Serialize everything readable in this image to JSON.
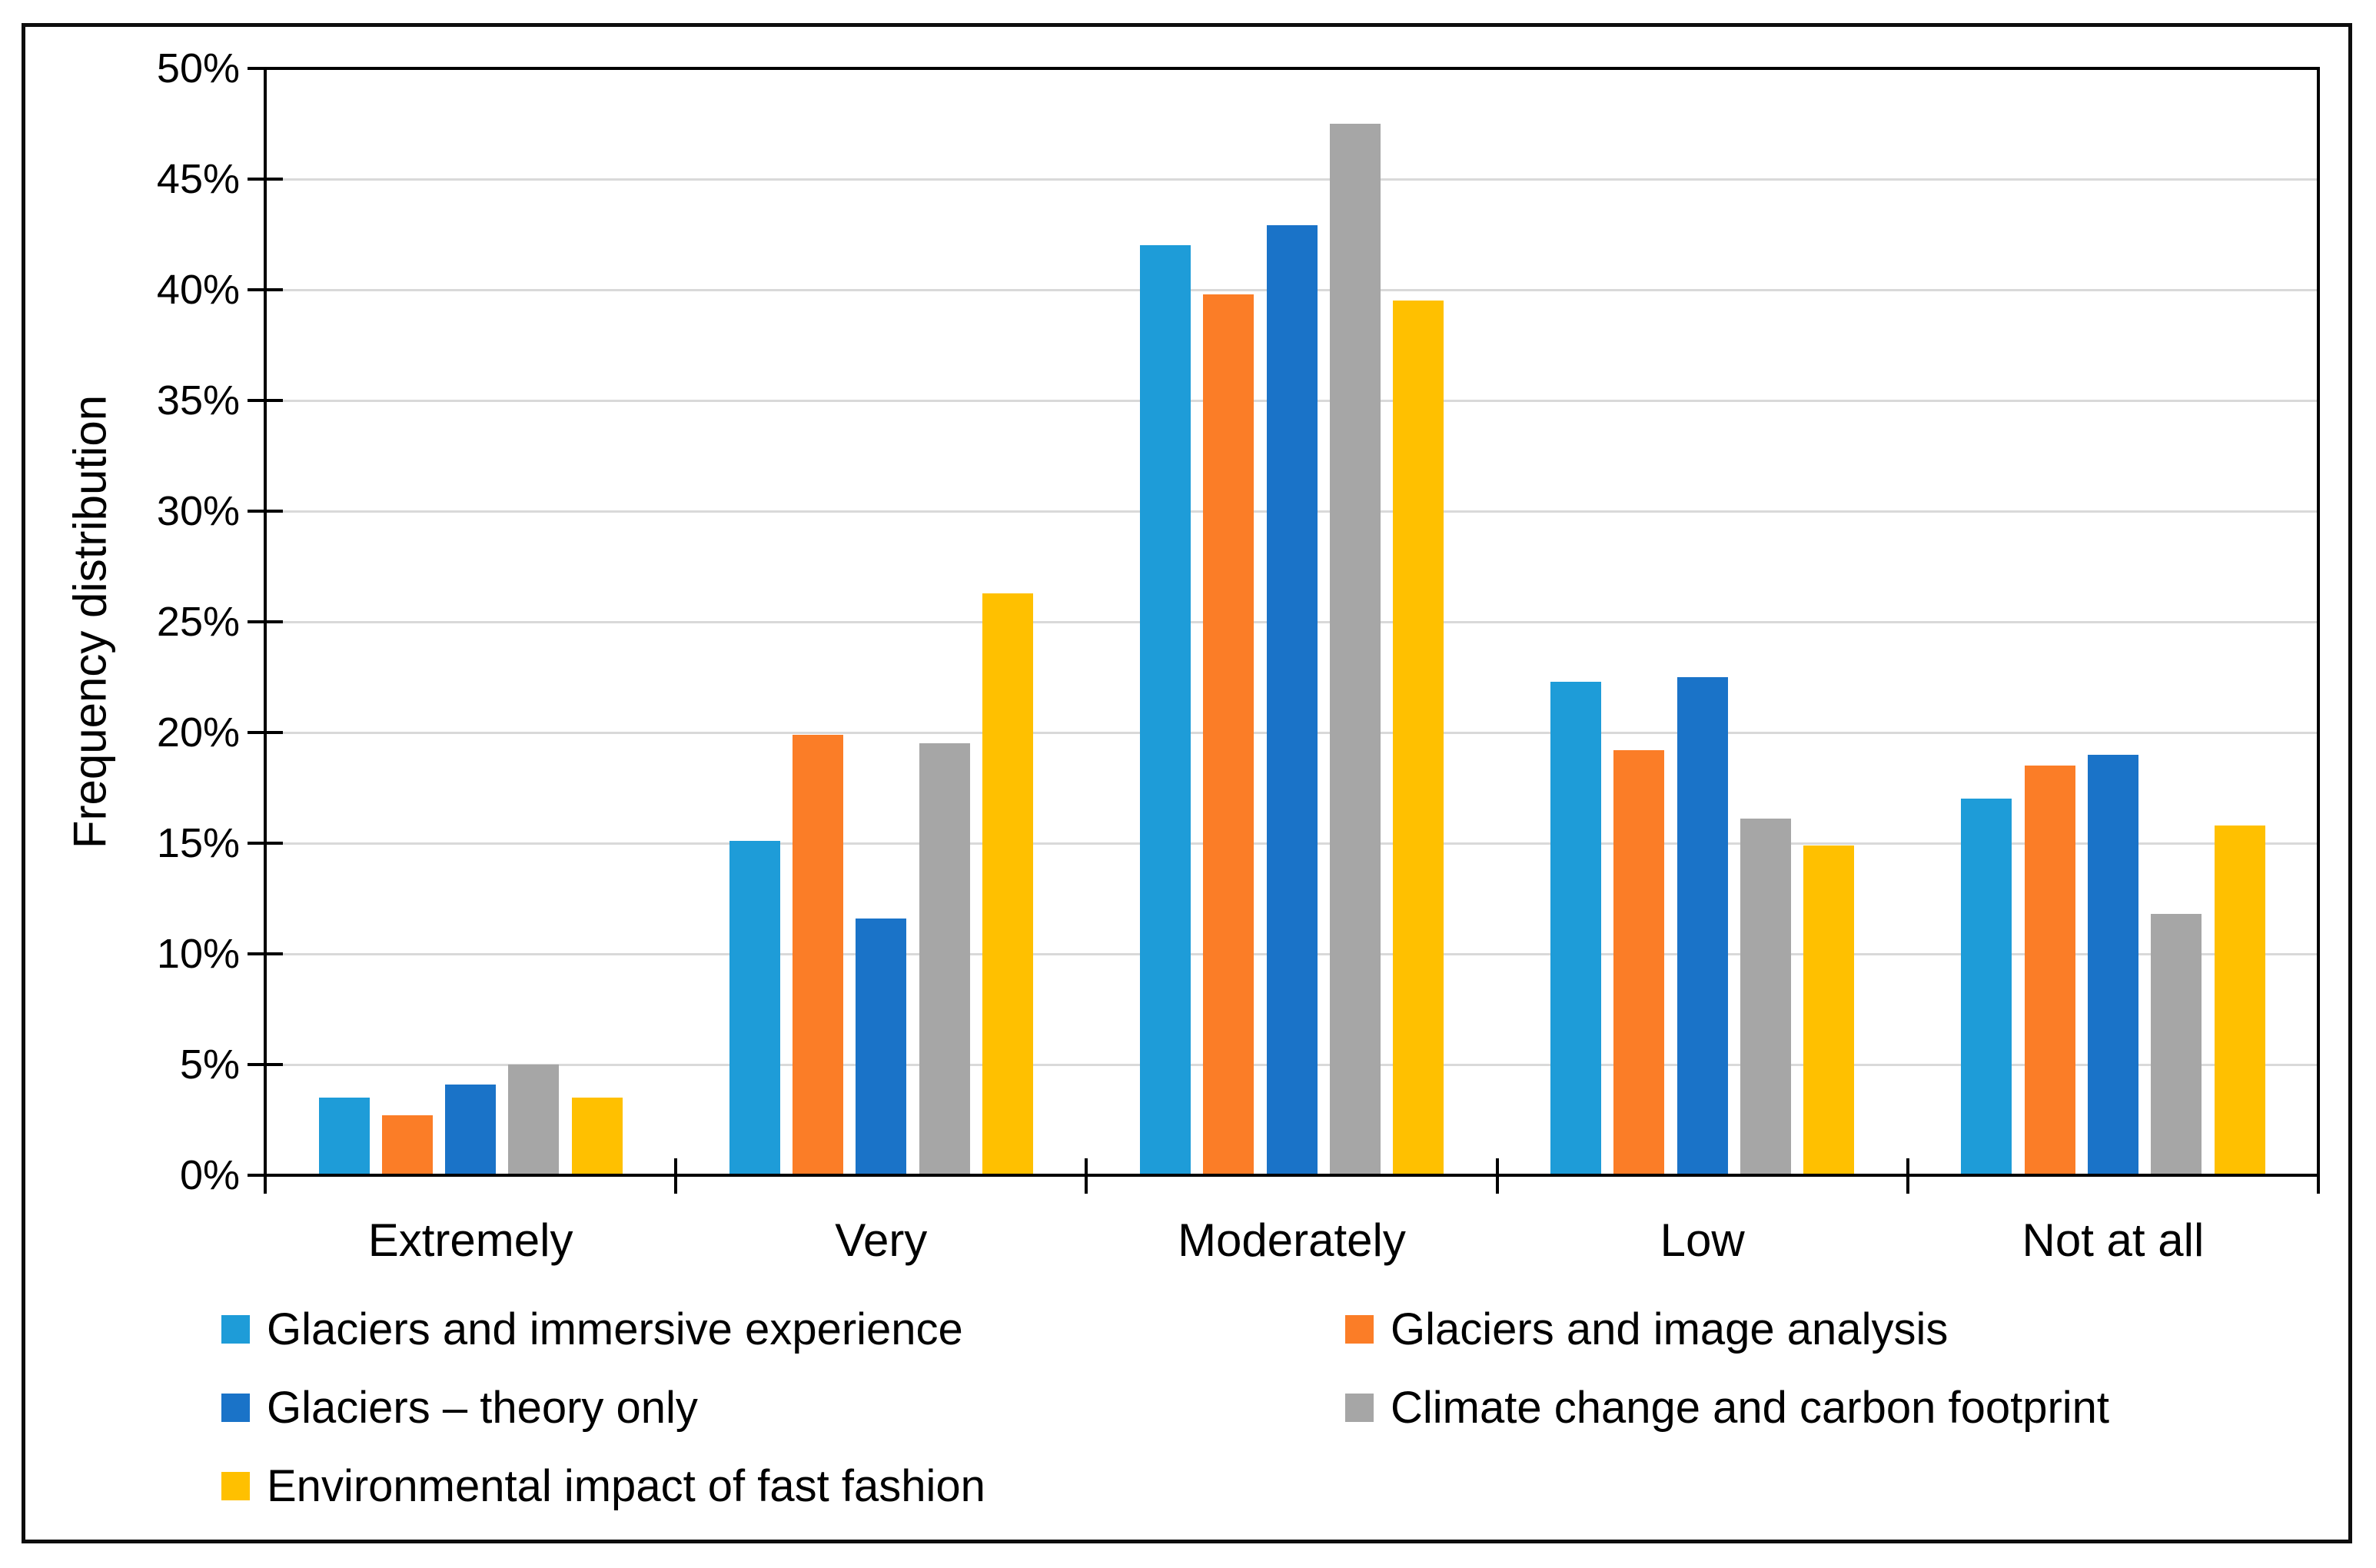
{
  "chart_data": {
    "type": "bar",
    "title": "",
    "xlabel": "",
    "ylabel": "Frequency distribution",
    "categories": [
      "Extremely",
      "Very",
      "Moderately",
      "Low",
      "Not at all"
    ],
    "series": [
      {
        "name": "Glaciers and immersive experience",
        "color": "#1E9CD8",
        "values": [
          3.5,
          15.1,
          42.0,
          22.3,
          17.0
        ]
      },
      {
        "name": "Glaciers and image analysis",
        "color": "#FB7D27",
        "values": [
          2.7,
          19.9,
          39.8,
          19.2,
          18.5
        ]
      },
      {
        "name": "Glaciers – theory only",
        "color": "#1A73C8",
        "values": [
          4.1,
          11.6,
          42.9,
          22.5,
          19.0
        ]
      },
      {
        "name": "Climate change and carbon footprint",
        "color": "#A6A6A6",
        "values": [
          5.0,
          19.5,
          47.5,
          16.1,
          11.8
        ]
      },
      {
        "name": "Environmental impact of fast fashion",
        "color": "#FFC000",
        "values": [
          3.5,
          26.3,
          39.5,
          14.9,
          15.8
        ]
      }
    ],
    "ylim": [
      0,
      50
    ],
    "ytick_step": 5,
    "ytick_labels": [
      "0%",
      "5%",
      "10%",
      "15%",
      "20%",
      "25%",
      "30%",
      "35%",
      "40%",
      "45%",
      "50%"
    ],
    "grid": true,
    "gridline_color": "#D9D9D9",
    "axis_color": "#000000",
    "legend_position": "bottom"
  }
}
